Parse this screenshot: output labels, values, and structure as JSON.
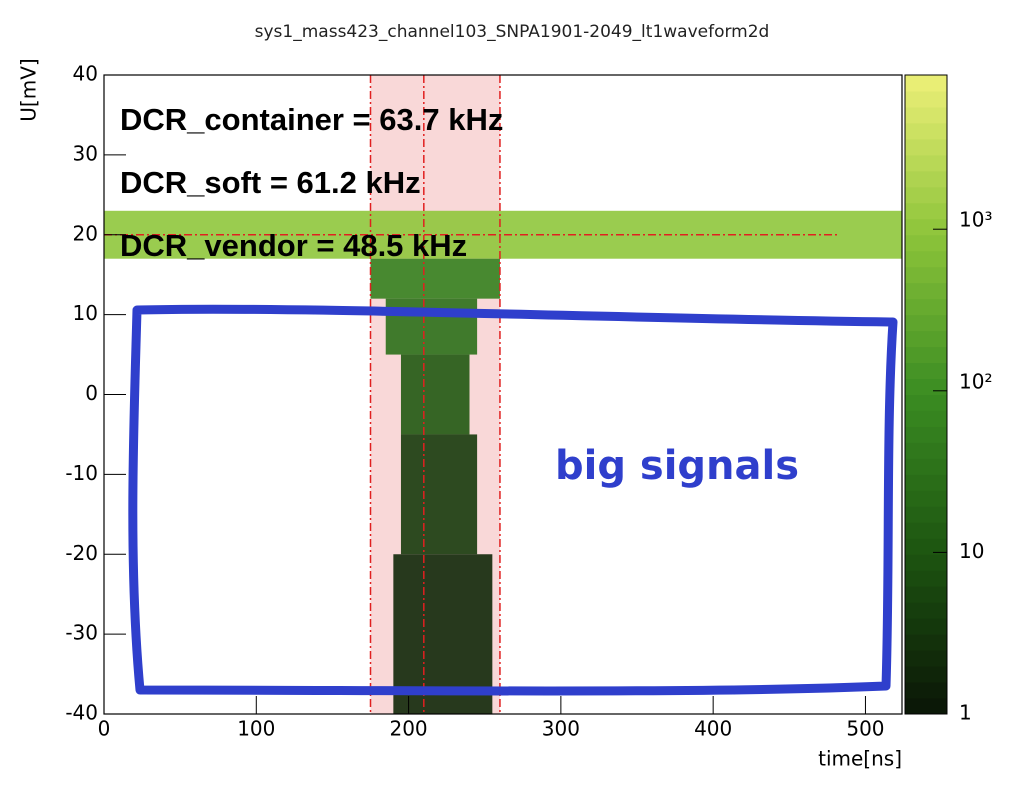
{
  "chart_data": {
    "type": "heatmap",
    "title": "sys1_mass423_channel103_SNPA1901-2049_lt1waveform2d",
    "x_label": "time[ns]",
    "y_label": "U[mV]",
    "xlim": [
      0,
      524
    ],
    "xticks": [
      0,
      100,
      200,
      300,
      400,
      500
    ],
    "ylim": [
      -40,
      40
    ],
    "yticks": [
      -40,
      -30,
      -20,
      -10,
      0,
      10,
      20,
      30,
      40
    ],
    "zlim": [
      1,
      9000
    ],
    "zlog": true,
    "zticks": [
      1,
      10,
      {
        "value": 100,
        "label": "10²"
      },
      {
        "value": 1000,
        "label": "10³"
      }
    ],
    "palette": [
      "#0a1506",
      "#1d5410",
      "#3a8c22",
      "#8cc43a",
      "#eef078"
    ],
    "regions": [
      {
        "x": [
          0,
          524
        ],
        "y": [
          17,
          23
        ],
        "value": 1000
      },
      {
        "x": [
          175,
          260
        ],
        "y": [
          12,
          17
        ],
        "value": 60
      },
      {
        "x": [
          185,
          245
        ],
        "y": [
          5,
          12
        ],
        "value": 30
      },
      {
        "x": [
          195,
          240
        ],
        "y": [
          -5,
          5
        ],
        "value": 12
      },
      {
        "x": [
          195,
          245
        ],
        "y": [
          -20,
          -5
        ],
        "value": 4
      },
      {
        "x": [
          190,
          255
        ],
        "y": [
          -40,
          -20
        ],
        "value": 2
      }
    ],
    "band": [
      175,
      260
    ],
    "vlines": [
      175,
      210,
      260
    ],
    "hline": 20,
    "annotations": [
      "DCR_container =  63.7 kHz",
      "DCR_soft =  61.2 kHz",
      "DCR_vendor =  48.5 kHz",
      "big signals"
    ]
  }
}
